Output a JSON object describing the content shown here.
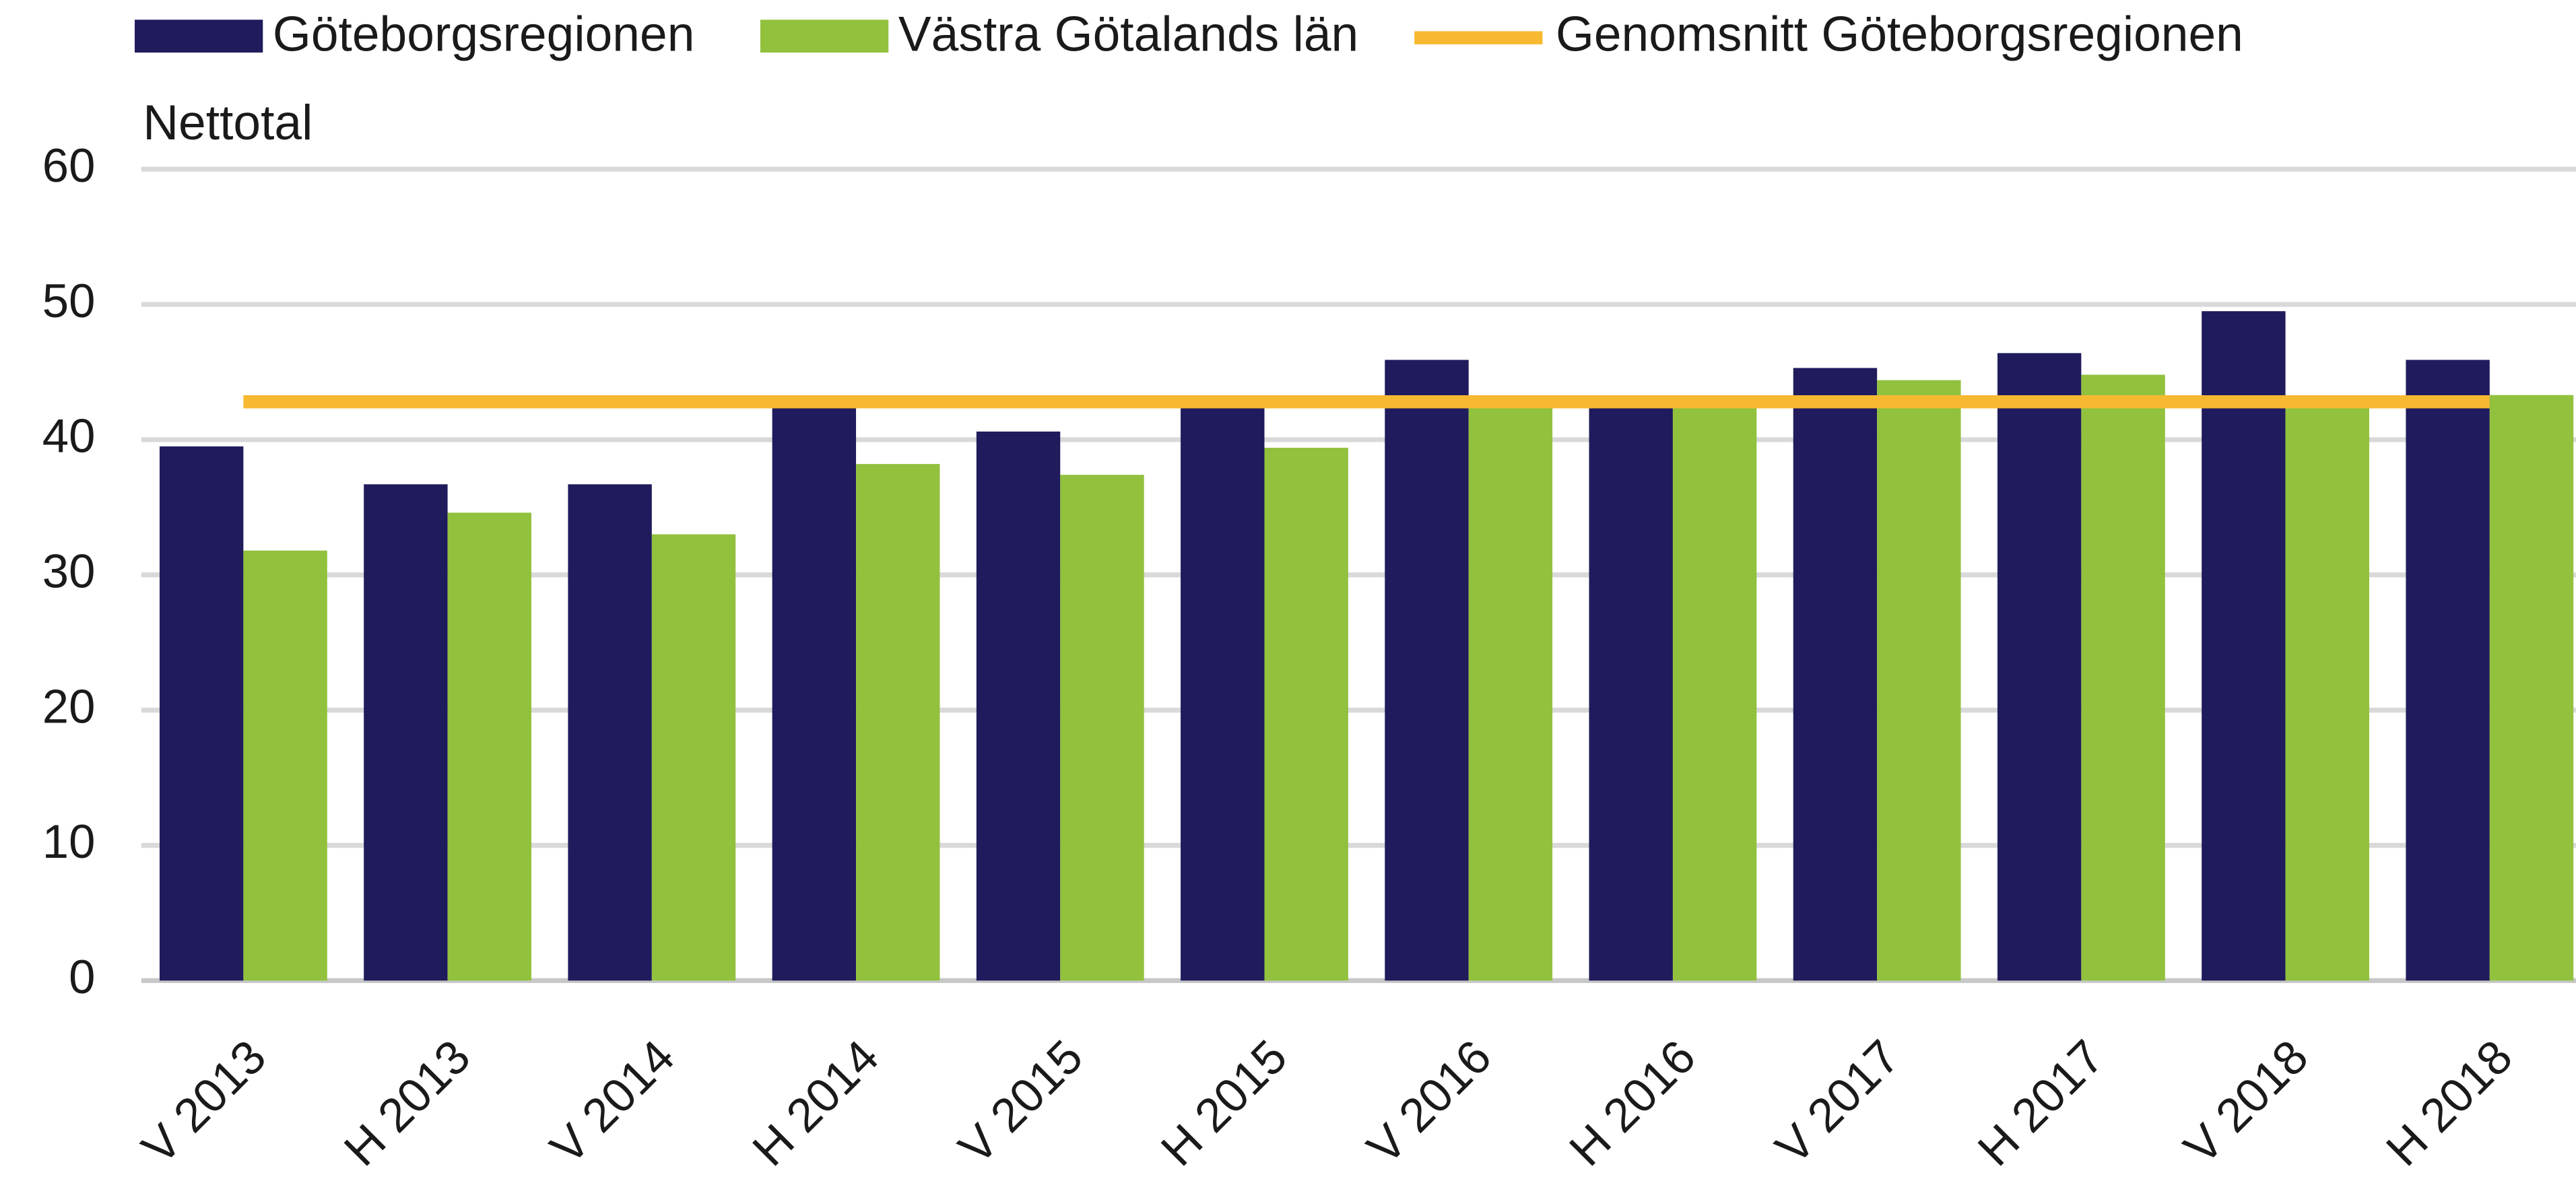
{
  "chart_data": {
    "type": "bar",
    "y_label": "Nettotal",
    "categories": [
      "V 2013",
      "H 2013",
      "V 2014",
      "H 2014",
      "V 2015",
      "H 2015",
      "V 2016",
      "H 2016",
      "V 2017",
      "H 2017",
      "V 2018",
      "H 2018"
    ],
    "series": [
      {
        "name": "Göteborgsregionen",
        "color": "#1f1b5c",
        "values": [
          39.5,
          36.7,
          36.7,
          43,
          40.6,
          43,
          45.9,
          43,
          45.3,
          46.4,
          49.5,
          45.9
        ]
      },
      {
        "name": "Västra Götalands län",
        "color": "#92c13e",
        "values": [
          31.8,
          34.6,
          33,
          38.2,
          37.4,
          39.4,
          42.5,
          43,
          44.4,
          44.8,
          43,
          43.3
        ]
      }
    ],
    "average": {
      "name": "Genomsnitt Göteborgsregionen",
      "color": "#f6b931",
      "value": 42.8
    },
    "ylim": [
      0,
      60
    ],
    "yticks": [
      0,
      10,
      20,
      30,
      40,
      50,
      60
    ],
    "grid": true
  }
}
